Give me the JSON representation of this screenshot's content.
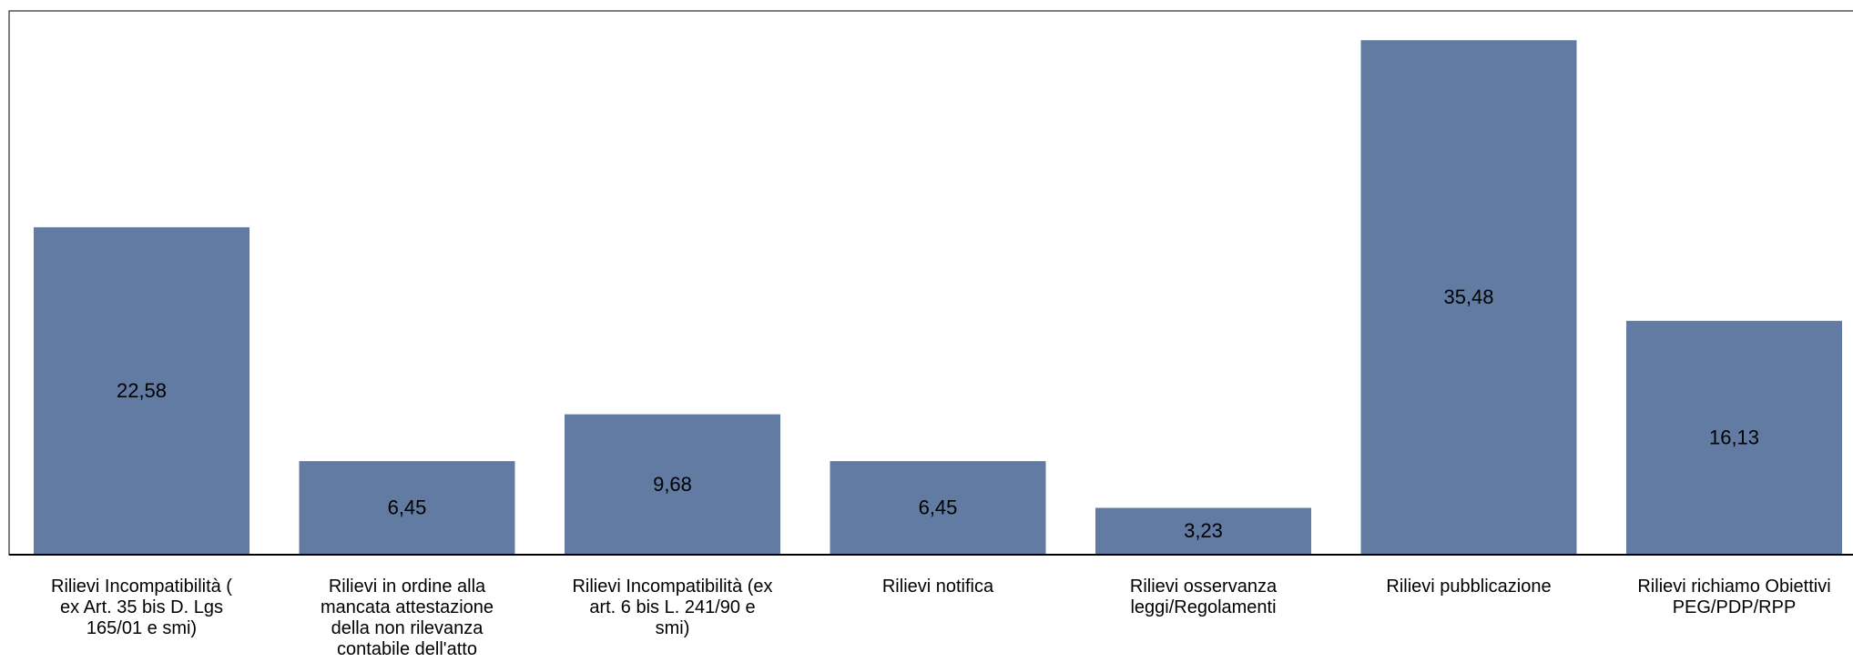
{
  "chart_data": {
    "type": "bar",
    "title": "",
    "xlabel": "",
    "ylabel": "",
    "ylim": [
      0,
      37.5
    ],
    "grid": false,
    "legend": "none",
    "categories": [
      "Rilievi Incompatibilità ( ex Art. 35 bis D. Lgs 165/01 e smi)",
      "Rilievi in ordine alla mancata attestazione della non rilevanza contabile dell'atto",
      "Rilievi Incompatibilità (ex art. 6 bis L. 241/90 e smi)",
      "Rilievi notifica",
      "Rilievi osservanza leggi/Regolamenti",
      "Rilievi pubblicazione",
      "Rilievi richiamo Obiettivi PEG/PDP/RPP"
    ],
    "category_lines": [
      [
        "Rilievi Incompatibilità (",
        "ex Art. 35 bis D. Lgs",
        "165/01 e smi)"
      ],
      [
        "Rilievi in ordine alla",
        "mancata attestazione",
        "della non rilevanza",
        "contabile dell'atto"
      ],
      [
        "Rilievi Incompatibilità (ex",
        "art. 6 bis L. 241/90 e",
        "smi)"
      ],
      [
        "Rilievi notifica"
      ],
      [
        "Rilievi osservanza",
        "leggi/Regolamenti"
      ],
      [
        "Rilievi pubblicazione"
      ],
      [
        "Rilievi richiamo Obiettivi",
        "PEG/PDP/RPP"
      ]
    ],
    "values": [
      22.58,
      6.45,
      9.68,
      6.45,
      3.23,
      35.48,
      16.13
    ],
    "value_labels": [
      "22,58",
      "6,45",
      "9,68",
      "6,45",
      "3,23",
      "35,48",
      "16,13"
    ],
    "colors": {
      "bar": "#627ba3",
      "axis": "#000000",
      "frame": "#000000"
    }
  }
}
